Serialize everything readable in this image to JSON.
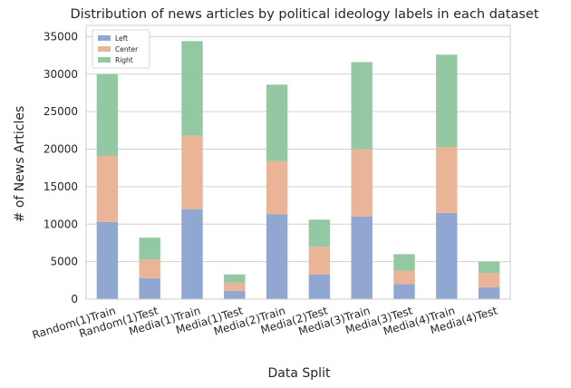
{
  "chart_data": {
    "type": "bar",
    "stacked": true,
    "title": "Distribution of news articles by political ideology labels in each dataset",
    "xlabel": "Data Split",
    "ylabel": "# of News Articles",
    "ylim": [
      0,
      36500
    ],
    "yticks": [
      0,
      5000,
      10000,
      15000,
      20000,
      25000,
      30000,
      35000
    ],
    "grid": true,
    "legend_position": "top-left",
    "categories": [
      "Random(1)Train",
      "Random(1)Test",
      "Media(1)Train",
      "Media(1)Test",
      "Media(2)Train",
      "Media(2)Test",
      "Media(3)Train",
      "Media(3)Test",
      "Media(4)Train",
      "Media(4)Test"
    ],
    "series": [
      {
        "name": "Left",
        "color": "#8fa7d1",
        "values": [
          10300,
          2800,
          12000,
          1100,
          11300,
          3300,
          11000,
          2000,
          11500,
          1600
        ]
      },
      {
        "name": "Center",
        "color": "#eab497",
        "values": [
          8800,
          2500,
          9800,
          1100,
          7100,
          3700,
          9000,
          1800,
          8800,
          1900
        ]
      },
      {
        "name": "Right",
        "color": "#93c9a2",
        "values": [
          10900,
          2900,
          12600,
          1100,
          10200,
          3600,
          11600,
          2200,
          12300,
          1500
        ]
      }
    ]
  }
}
